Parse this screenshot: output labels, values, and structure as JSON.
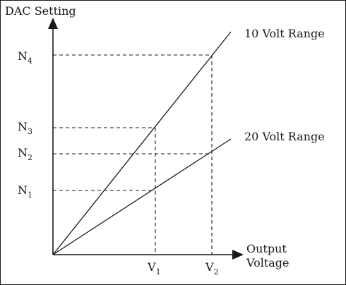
{
  "y_axis_label": "DAC Setting",
  "x_axis_label_line1": "Output",
  "x_axis_label_line2": "Voltage",
  "lines": {
    "ten_volt": "10 Volt Range",
    "twenty_volt": "20 Volt Range"
  },
  "y_ticks": [
    {
      "base": "N",
      "sub": "4"
    },
    {
      "base": "N",
      "sub": "3"
    },
    {
      "base": "N",
      "sub": "2"
    },
    {
      "base": "N",
      "sub": "1"
    }
  ],
  "x_ticks": [
    {
      "base": "V",
      "sub": "1"
    },
    {
      "base": "V",
      "sub": "2"
    }
  ],
  "colors": {
    "ink": "#1a1a1a",
    "background": "#ffffff"
  }
}
